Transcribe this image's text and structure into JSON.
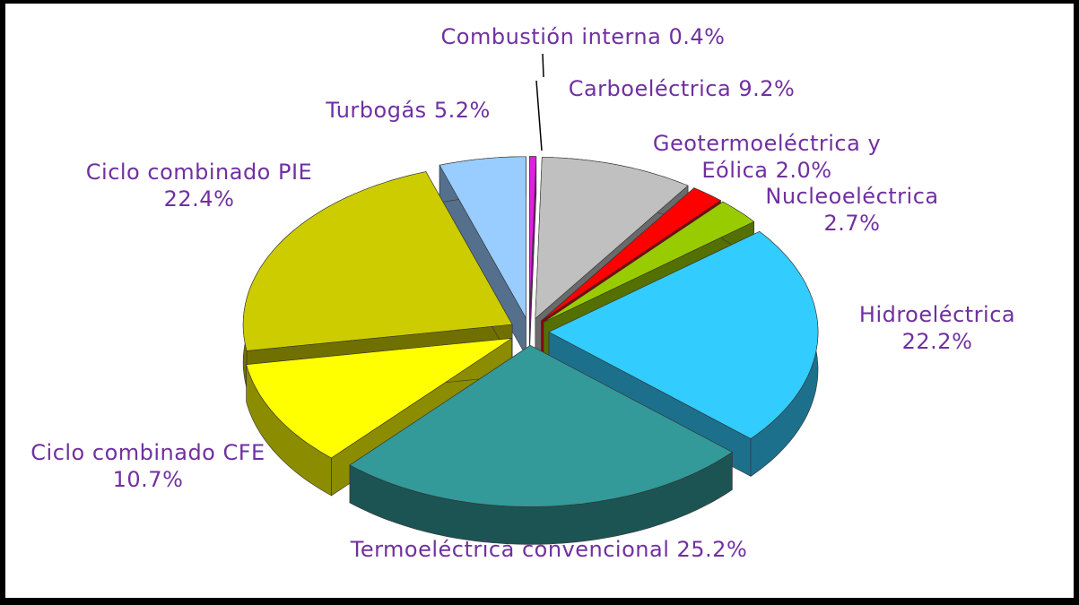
{
  "chart_data": {
    "type": "pie3d",
    "categories": [
      "Combustión interna",
      "Carboeléctrica",
      "Geotermoeléctrica y Eólica",
      "Nucleoeléctrica",
      "Hidroeléctrica",
      "Termoeléctrica convencional",
      "Ciclo combinado CFE",
      "Ciclo combinado PIE",
      "Turbogás"
    ],
    "values": [
      0.4,
      9.2,
      2.0,
      2.7,
      22.2,
      25.2,
      10.7,
      22.4,
      5.2
    ],
    "value_labels": [
      "0.4%",
      "9.2%",
      "2.0%",
      "2.7%",
      "22.2%",
      "25.2%",
      "10.7%",
      "22.4%",
      "5.2%"
    ],
    "colors": [
      "#e020e0",
      "#c0c0c0",
      "#ff0000",
      "#99cc00",
      "#33ccff",
      "#339999",
      "#ffff00",
      "#cccc00",
      "#99ccff"
    ]
  }
}
